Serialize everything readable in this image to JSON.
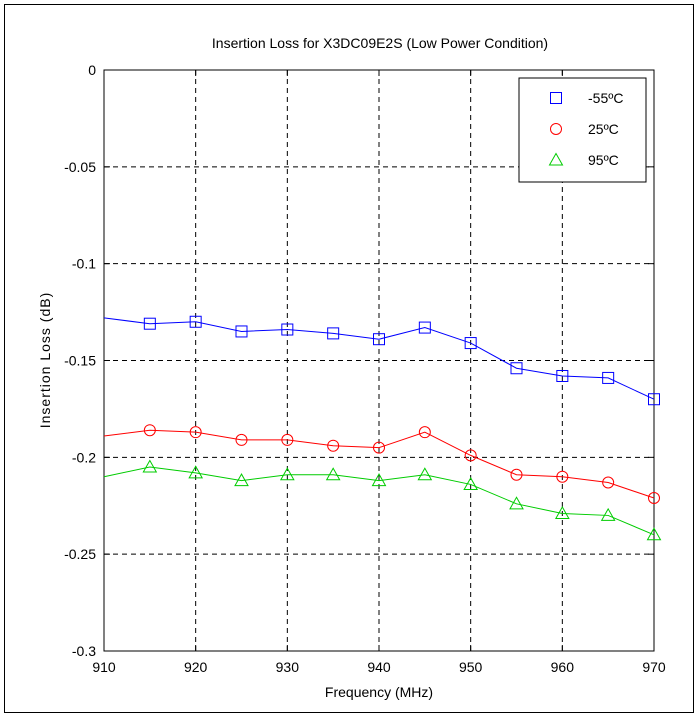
{
  "chart_data": {
    "type": "line",
    "title": "Insertion Loss for X3DC09E2S (Low Power Condition)",
    "xlabel": "Frequency (MHz)",
    "ylabel": "Insertion Loss (dB)",
    "xlim": [
      910,
      970
    ],
    "ylim": [
      -0.3,
      0
    ],
    "xticks": [
      910,
      920,
      930,
      940,
      950,
      960,
      970
    ],
    "yticks": [
      0,
      -0.05,
      -0.1,
      -0.15,
      -0.2,
      -0.25,
      -0.3
    ],
    "xtick_labels": [
      "910",
      "920",
      "930",
      "940",
      "950",
      "960",
      "970"
    ],
    "ytick_labels": [
      "0",
      "-0.05",
      "-0.1",
      "-0.15",
      "-0.2",
      "-0.25",
      "-0.3"
    ],
    "grid": true,
    "legend_position": "top-right",
    "x": [
      910,
      915,
      920,
      925,
      930,
      935,
      940,
      945,
      950,
      955,
      960,
      965,
      970
    ],
    "series": [
      {
        "name": "-55ºC",
        "color": "#0000ff",
        "marker": "square",
        "values": [
          -0.128,
          -0.131,
          -0.13,
          -0.135,
          -0.134,
          -0.136,
          -0.139,
          -0.133,
          -0.141,
          -0.154,
          -0.158,
          -0.159,
          -0.17
        ]
      },
      {
        "name": "25ºC",
        "color": "#ff0000",
        "marker": "circle",
        "values": [
          -0.189,
          -0.186,
          -0.187,
          -0.191,
          -0.191,
          -0.194,
          -0.195,
          -0.187,
          -0.199,
          -0.209,
          -0.21,
          -0.213,
          -0.221
        ]
      },
      {
        "name": "95ºC",
        "color": "#00cc00",
        "marker": "triangle",
        "values": [
          -0.21,
          -0.205,
          -0.208,
          -0.212,
          -0.209,
          -0.209,
          -0.212,
          -0.209,
          -0.214,
          -0.224,
          -0.229,
          -0.23,
          -0.24
        ]
      }
    ]
  }
}
